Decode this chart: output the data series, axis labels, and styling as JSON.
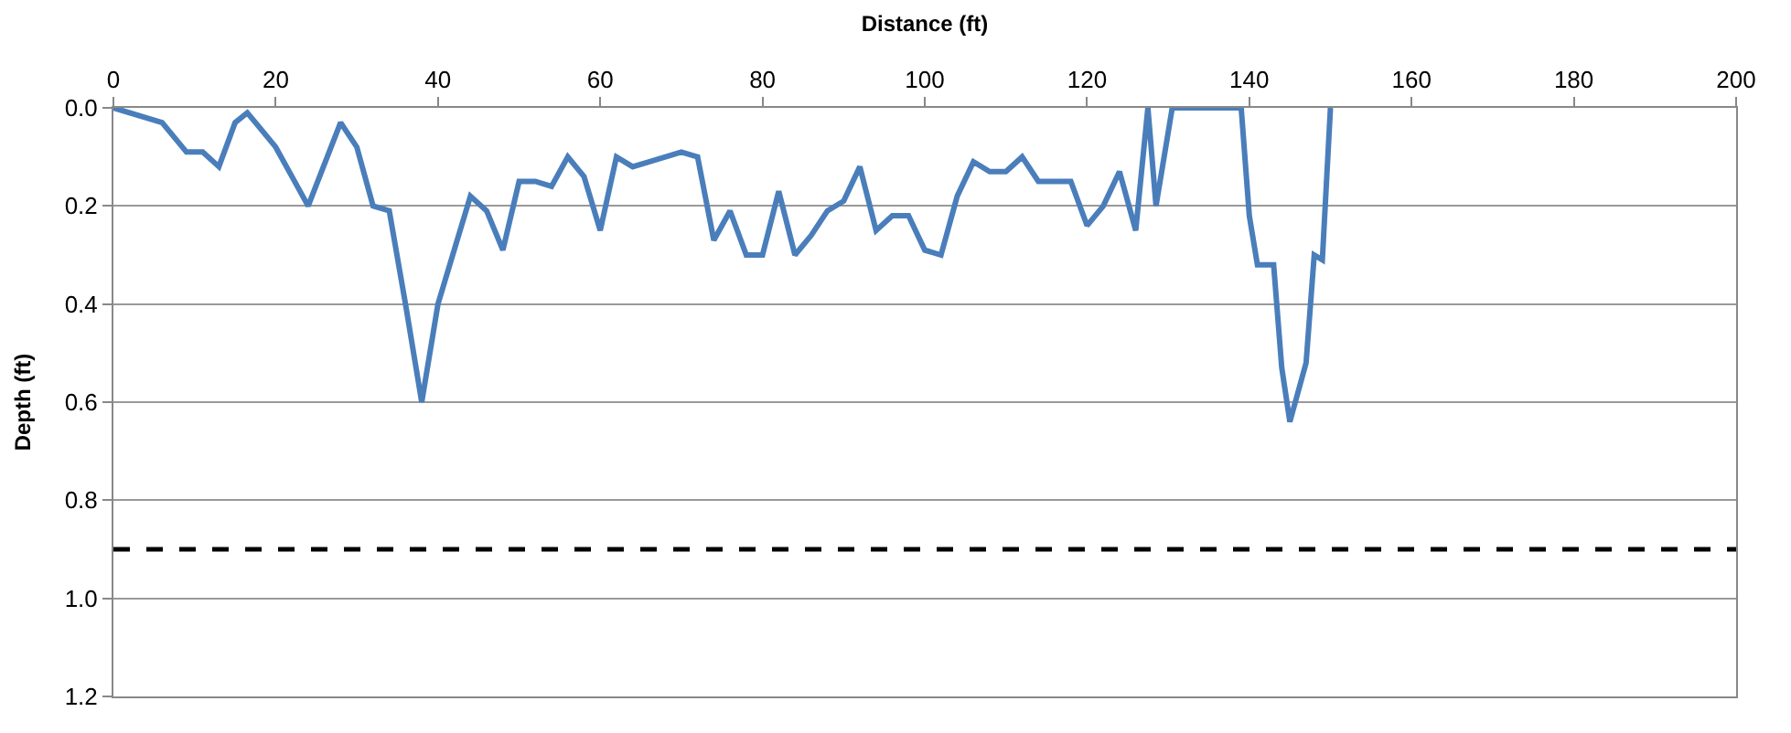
{
  "chart_data": {
    "type": "line",
    "xlabel": "Distance (ft)",
    "ylabel": "Depth (ft)",
    "x": [
      0,
      6,
      9,
      11,
      13,
      15,
      16.5,
      18,
      20,
      22,
      24,
      28,
      30,
      32,
      34,
      36,
      38,
      40,
      42,
      44,
      46,
      48,
      50,
      52,
      54,
      56,
      58,
      60,
      62,
      64,
      66,
      70,
      72,
      74,
      76,
      78,
      80,
      82,
      84,
      86,
      88,
      90,
      92,
      94,
      96,
      98,
      100,
      102,
      104,
      106,
      108,
      110,
      112,
      114,
      118,
      120,
      122,
      124,
      126,
      127.5,
      128.5,
      130.5,
      139,
      140,
      141,
      143,
      144,
      145,
      147,
      148,
      149,
      150
    ],
    "series": [
      {
        "color": "#4a7ebb",
        "values": [
          0,
          0.03,
          0.09,
          0.09,
          0.12,
          0.03,
          0.01,
          0.04,
          0.08,
          0.14,
          0.2,
          0.03,
          0.08,
          0.2,
          0.21,
          0.4,
          0.6,
          0.4,
          0.29,
          0.18,
          0.21,
          0.29,
          0.15,
          0.15,
          0.16,
          0.1,
          0.14,
          0.25,
          0.1,
          0.12,
          0.11,
          0.09,
          0.1,
          0.27,
          0.21,
          0.3,
          0.3,
          0.17,
          0.3,
          0.26,
          0.21,
          0.19,
          0.12,
          0.25,
          0.22,
          0.22,
          0.29,
          0.3,
          0.18,
          0.11,
          0.13,
          0.13,
          0.1,
          0.15,
          0.15,
          0.24,
          0.2,
          0.13,
          0.25,
          0,
          0.2,
          0,
          0,
          0.22,
          0.32,
          0.32,
          0.53,
          0.64,
          0.52,
          0.3,
          0.31,
          0
        ]
      }
    ],
    "xlim": [
      0,
      200
    ],
    "xticks": [
      0,
      20,
      40,
      60,
      80,
      100,
      120,
      140,
      160,
      180,
      200
    ],
    "ylim": [
      1.2,
      0
    ],
    "yticks": [
      {
        "value": 0,
        "label": "0.0"
      },
      {
        "value": 0.2,
        "label": "0.2"
      },
      {
        "value": 0.4,
        "label": "0.4"
      },
      {
        "value": 0.6,
        "label": "0.6"
      },
      {
        "value": 0.8,
        "label": "0.8"
      },
      {
        "value": 1.0,
        "label": "1.0"
      },
      {
        "value": 1.2,
        "label": "1.2"
      }
    ],
    "grid": "y",
    "marker": "none",
    "line_style": "solid",
    "ref_lines": [
      {
        "axis": "y",
        "value": 0.9,
        "color": "#000000",
        "line_style": "dashed"
      }
    ]
  }
}
